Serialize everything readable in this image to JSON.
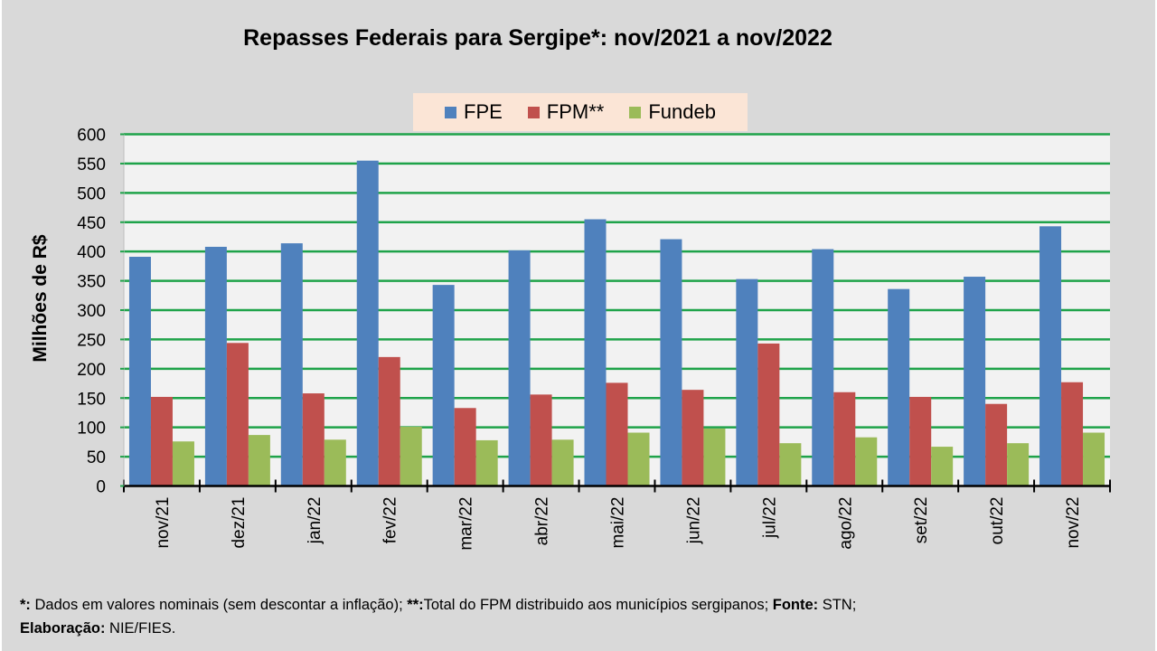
{
  "chart_data": {
    "type": "bar",
    "title": "Repasses Federais para Sergipe*: nov/2021 a nov/2022",
    "xlabel": "",
    "ylabel": "Milhões de R$",
    "ylim": [
      0,
      600
    ],
    "yticks": [
      0,
      50,
      100,
      150,
      200,
      250,
      300,
      350,
      400,
      450,
      500,
      550,
      600
    ],
    "grid": true,
    "legend_position": "top-center",
    "categories": [
      "nov/21",
      "dez/21",
      "jan/22",
      "fev/22",
      "mar/22",
      "abr/22",
      "mai/22",
      "jun/22",
      "jul/22",
      "ago/22",
      "set/22",
      "out/22",
      "nov/22"
    ],
    "series": [
      {
        "name": "FPE",
        "color": "#4f81bd",
        "values": [
          391,
          408,
          414,
          555,
          343,
          402,
          455,
          421,
          353,
          404,
          336,
          357,
          443
        ]
      },
      {
        "name": "FPM**",
        "color": "#c0504d",
        "values": [
          152,
          244,
          158,
          220,
          133,
          156,
          176,
          164,
          243,
          160,
          152,
          140,
          177
        ]
      },
      {
        "name": "Fundeb",
        "color": "#9bbb59",
        "values": [
          76,
          87,
          79,
          101,
          78,
          79,
          91,
          98,
          73,
          83,
          67,
          73,
          91
        ]
      }
    ]
  },
  "colors": {
    "panel_bg": "#d9d9d9",
    "plot_bg": "#f2f2f2",
    "gridline": "#1fa34a",
    "legend_bg": "#fbe5d6"
  },
  "footer": {
    "note1_label": "*:",
    "note1_text": " Dados em valores nominais (sem descontar a inflação); ",
    "note2_label": "**:",
    "note2_text": "Total  do FPM distribuido aos municípios sergipanos; ",
    "source_label": "Fonte:",
    "source_text": " STN;",
    "author_label": "Elaboração:",
    "author_text": " NIE/FIES."
  }
}
